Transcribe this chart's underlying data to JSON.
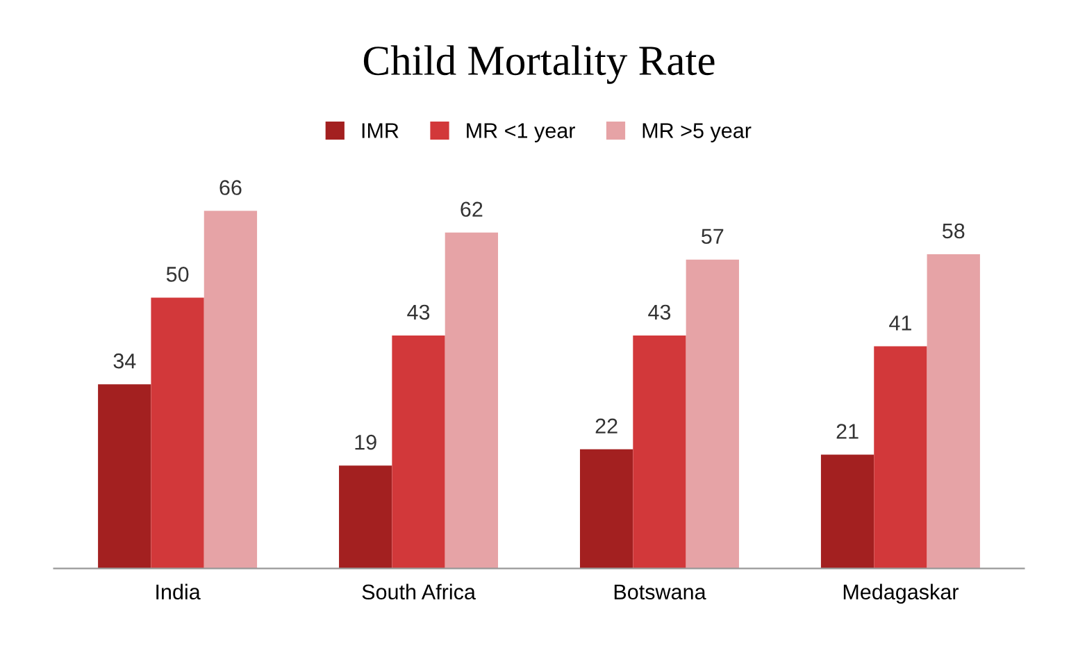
{
  "chart_data": {
    "type": "bar",
    "title": "Child Mortality Rate",
    "categories": [
      "India",
      "South Africa",
      "Botswana",
      "Medagaskar"
    ],
    "series": [
      {
        "name": "IMR",
        "color": "#a32020",
        "values": [
          34,
          19,
          22,
          21
        ]
      },
      {
        "name": "MR <1 year",
        "color": "#d2383a",
        "values": [
          50,
          43,
          43,
          41
        ]
      },
      {
        "name": "MR >5 year",
        "color": "#e6a3a6",
        "values": [
          66,
          62,
          57,
          58
        ]
      }
    ],
    "data_labels": true,
    "legend": "top",
    "grid": false
  }
}
